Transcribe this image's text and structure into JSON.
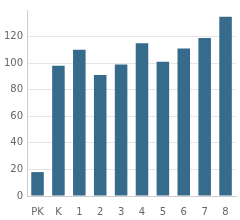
{
  "chart_data": {
    "type": "bar",
    "categories": [
      "PK",
      "K",
      "1",
      "2",
      "3",
      "4",
      "5",
      "6",
      "7",
      "8"
    ],
    "values": [
      18,
      98,
      110,
      91,
      99,
      115,
      101,
      111,
      119,
      135
    ],
    "color": "#366b8c",
    "ylim": [
      0,
      140
    ],
    "yticks": [
      0,
      20,
      40,
      60,
      80,
      100,
      120
    ],
    "grid": true
  }
}
